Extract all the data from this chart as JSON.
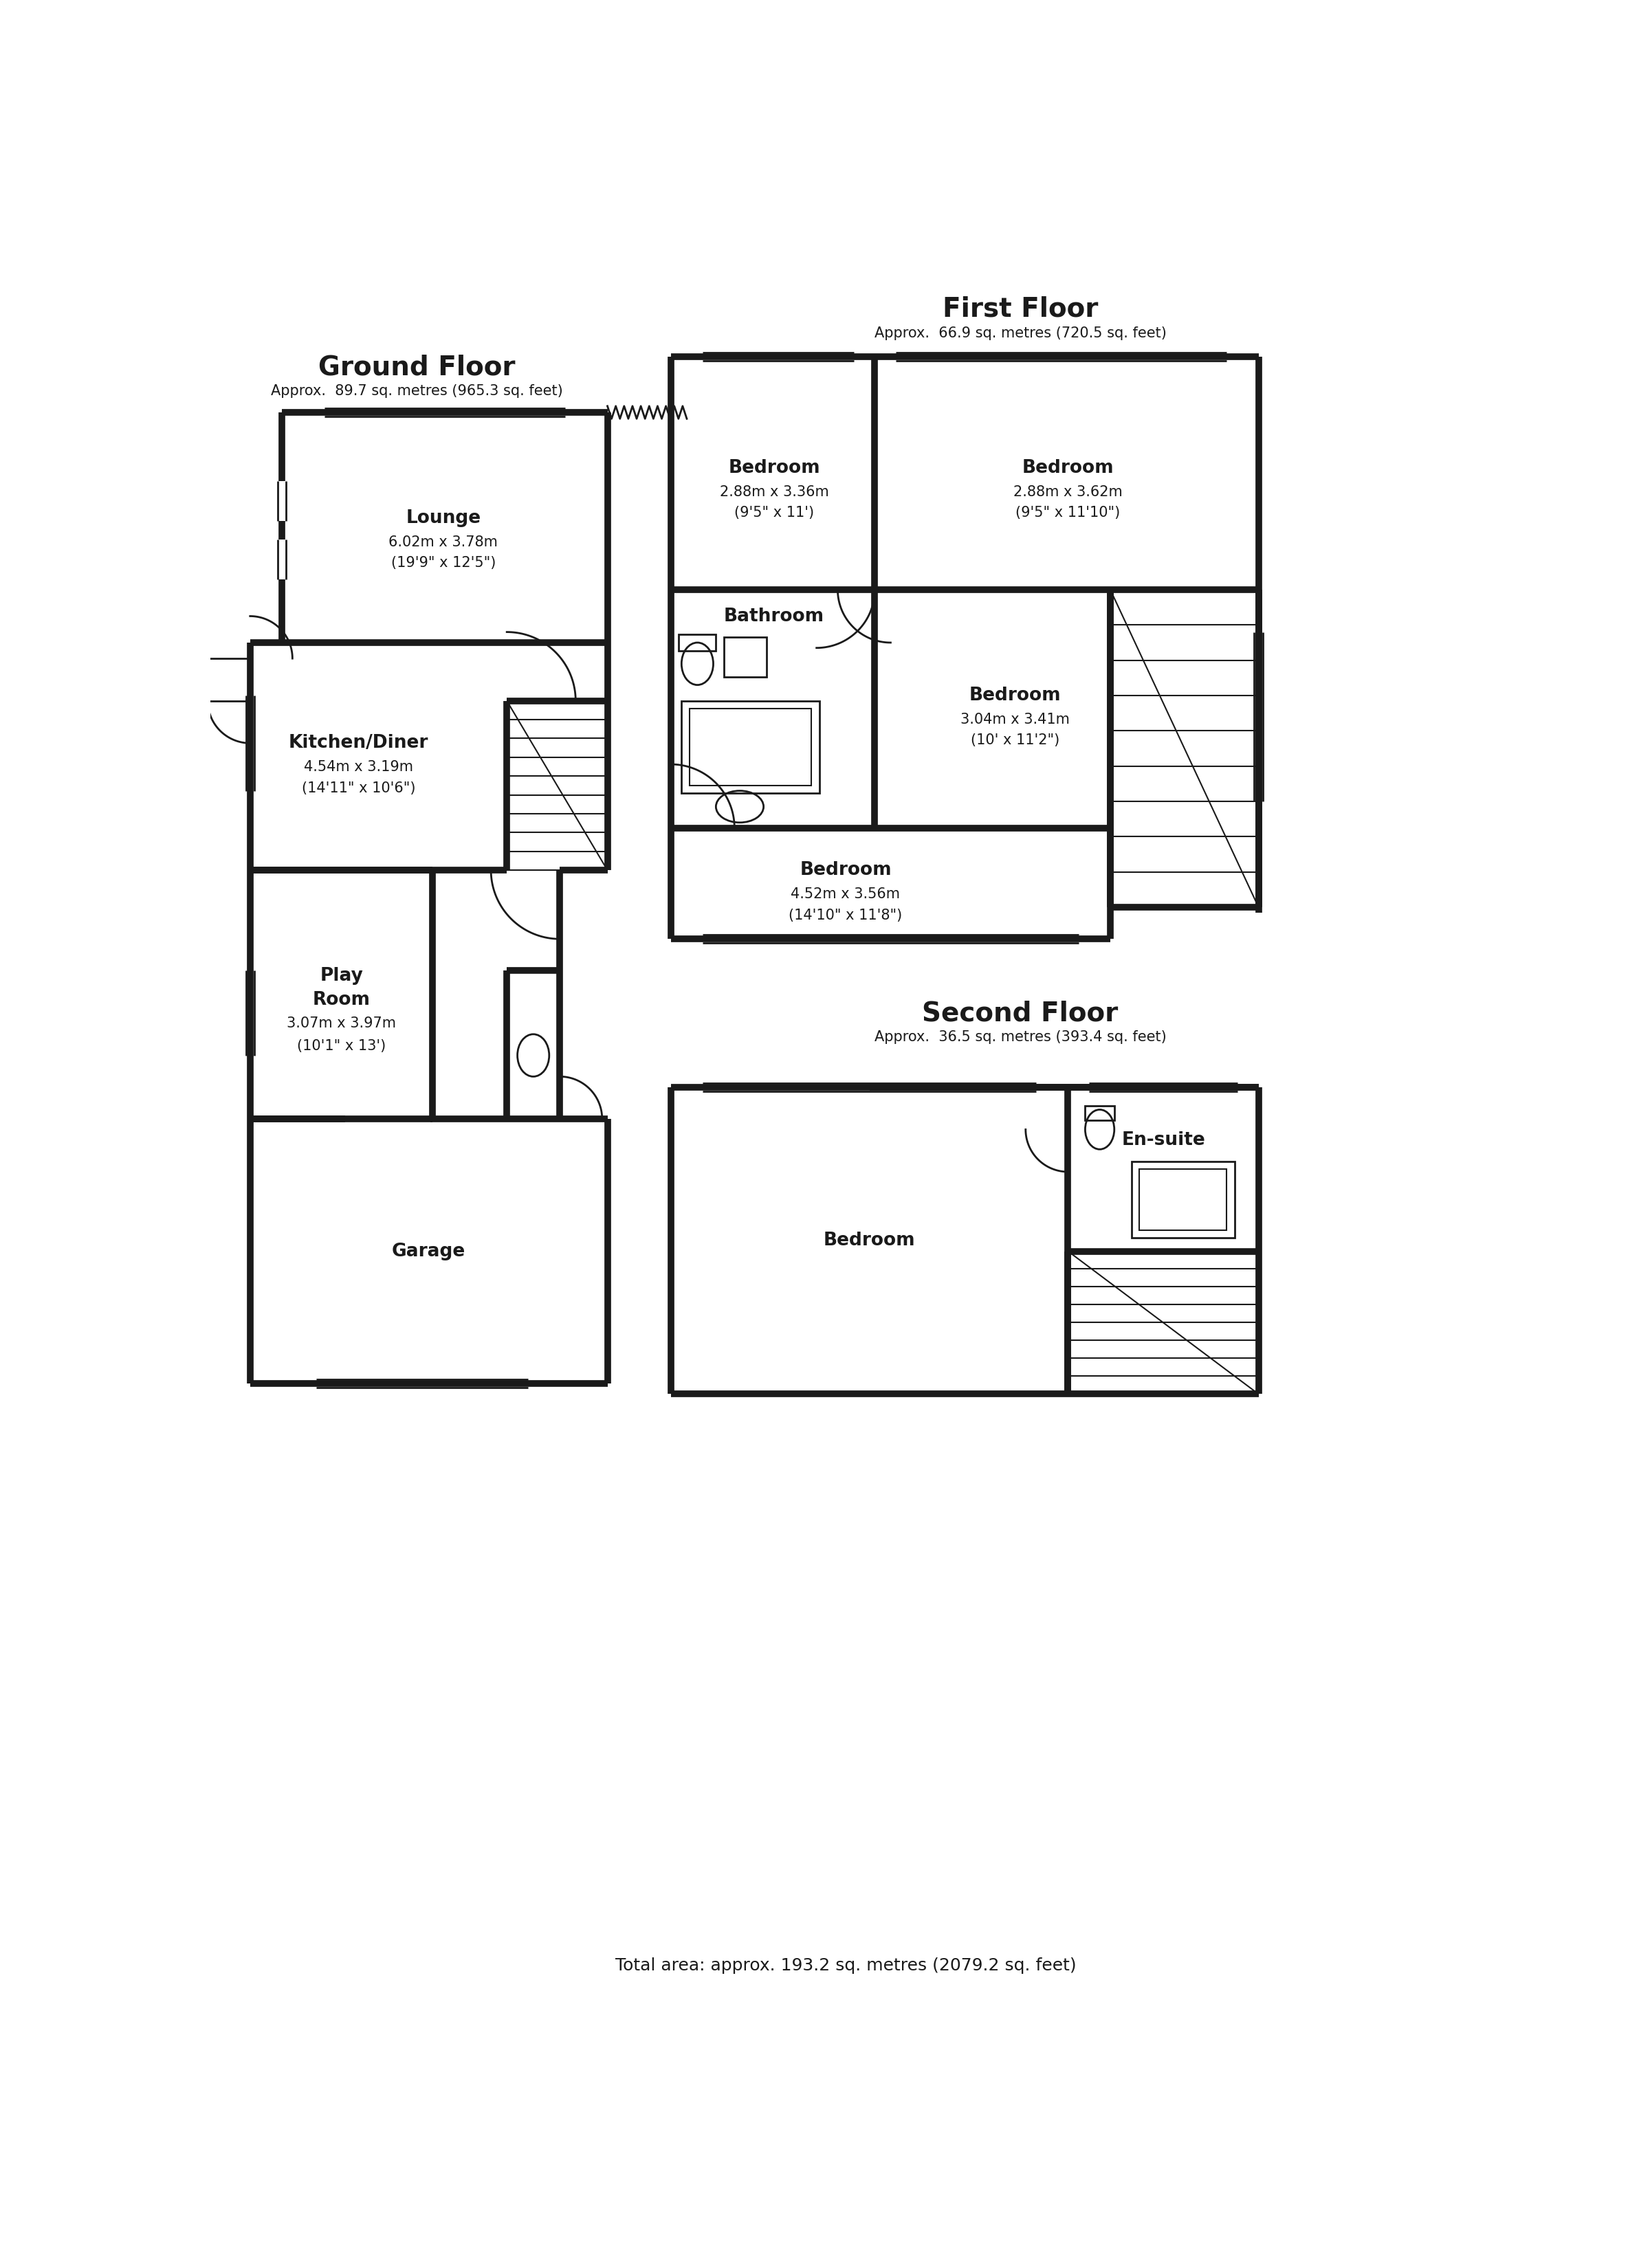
{
  "bg_color": "#ffffff",
  "wc": "#1a1a1a",
  "lw": 7,
  "tlw": 2.0,
  "title_fs": 28,
  "sub_fs": 15,
  "room_fs": 19,
  "dim_fs": 15,
  "footer_fs": 18,
  "gf_title": "Ground Floor",
  "gf_sub": "Approx.  89.7 sq. metres (965.3 sq. feet)",
  "ff_title": "First Floor",
  "ff_sub": "Approx.  66.9 sq. metres (720.5 sq. feet)",
  "sf_title": "Second Floor",
  "sf_sub": "Approx.  36.5 sq. metres (393.4 sq. feet)",
  "footer": "Total area: approx. 193.2 sq. metres (2079.2 sq. feet)"
}
